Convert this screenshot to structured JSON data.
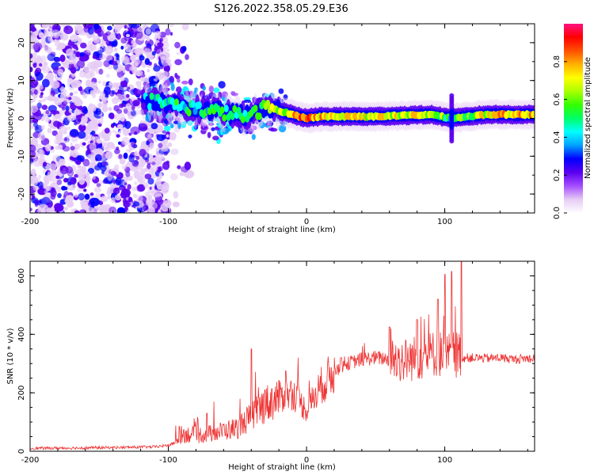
{
  "title": "S126.2022.358.05.29.E36",
  "chart_data": [
    {
      "type": "heatmap",
      "xlabel": "Height of straight line (km)",
      "ylabel": "Frequency (Hz)",
      "xlim": [
        -200,
        165
      ],
      "ylim": [
        -25,
        25
      ],
      "x_ticks": [
        -200,
        -100,
        0,
        100
      ],
      "y_ticks": [
        -20,
        -10,
        0,
        10,
        20
      ],
      "grid": false,
      "colorbar": {
        "label": "Normalized spectral amplitude",
        "range": [
          0,
          1
        ],
        "ticks": [
          "0.0",
          "0.2",
          "0.4",
          "0.6",
          "0.8"
        ],
        "colors": [
          "#ffffff",
          "#e6ccf5",
          "#a54dff",
          "#5b00f0",
          "#0000ff",
          "#00a0ff",
          "#00ffff",
          "#00ff66",
          "#33ff00",
          "#aaff00",
          "#ffff00",
          "#ffb000",
          "#ff5000",
          "#ff0000",
          "#ff1080"
        ]
      },
      "ridge": [
        {
          "x": -120,
          "f": 4.8,
          "amp": 0.35
        },
        {
          "x": -100,
          "f": 4.0,
          "amp": 0.45
        },
        {
          "x": -80,
          "f": 2.5,
          "amp": 0.45
        },
        {
          "x": -60,
          "f": 1.5,
          "amp": 0.5
        },
        {
          "x": -40,
          "f": 0.5,
          "amp": 0.5
        },
        {
          "x": -30,
          "f": 3.0,
          "amp": 0.6
        },
        {
          "x": -15,
          "f": 1.5,
          "amp": 0.65
        },
        {
          "x": 0,
          "f": 0.0,
          "amp": 0.85
        },
        {
          "x": 10,
          "f": 0.5,
          "amp": 0.75
        },
        {
          "x": 50,
          "f": 0.5,
          "amp": 0.7
        },
        {
          "x": 90,
          "f": 1.0,
          "amp": 0.65
        },
        {
          "x": 105,
          "f": 0.0,
          "amp": 0.5
        },
        {
          "x": 130,
          "f": 1.0,
          "amp": 0.7
        },
        {
          "x": 165,
          "f": 1.0,
          "amp": 0.75
        }
      ]
    },
    {
      "type": "line",
      "xlabel": "Height of straight line (km)",
      "ylabel": "SNR (10 * v/v)",
      "xlim": [
        -200,
        165
      ],
      "ylim": [
        0,
        650
      ],
      "x_ticks": [
        -200,
        -100,
        0,
        100
      ],
      "y_ticks": [
        0,
        200,
        400,
        600
      ],
      "grid": false,
      "series": [
        {
          "color": "#ee3333",
          "x": [
            -200,
            -150,
            -110,
            -100,
            -95,
            -90,
            -80,
            -70,
            -60,
            -50,
            -40,
            -30,
            -20,
            -10,
            0,
            10,
            20,
            30,
            40,
            50,
            60,
            70,
            80,
            90,
            95,
            100,
            105,
            110,
            112,
            120,
            130,
            140,
            150,
            160,
            165
          ],
          "y": [
            10,
            12,
            15,
            20,
            30,
            60,
            55,
            60,
            70,
            80,
            120,
            160,
            185,
            200,
            140,
            220,
            275,
            300,
            315,
            320,
            315,
            310,
            320,
            330,
            340,
            320,
            330,
            335,
            320,
            320,
            318,
            320,
            315,
            318,
            320
          ],
          "spikes": [
            {
              "x": -92,
              "y": 85
            },
            {
              "x": -72,
              "y": 130
            },
            {
              "x": -40,
              "y": 350
            },
            {
              "x": -30,
              "y": 210
            },
            {
              "x": -15,
              "y": 275
            },
            {
              "x": 25,
              "y": 320
            },
            {
              "x": 60,
              "y": 425
            },
            {
              "x": 80,
              "y": 450
            },
            {
              "x": 95,
              "y": 520
            },
            {
              "x": 100,
              "y": 605
            },
            {
              "x": 105,
              "y": 615
            },
            {
              "x": 112,
              "y": 650
            }
          ]
        }
      ]
    }
  ]
}
